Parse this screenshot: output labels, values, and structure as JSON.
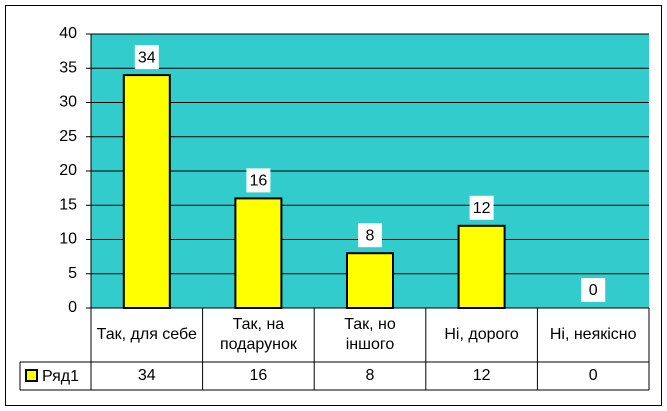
{
  "chart_data": {
    "type": "bar",
    "categories": [
      "Так, для себе",
      "Так, на подарунок",
      "Так, но іншого",
      "Ні, дорого",
      "Ні, неякісно"
    ],
    "series": [
      {
        "name": "Ряд1",
        "color": "#ffff00",
        "values": [
          34,
          16,
          8,
          12,
          0
        ]
      }
    ],
    "ylim": [
      0,
      40
    ],
    "yticks": [
      0,
      5,
      10,
      15,
      20,
      25,
      30,
      35,
      40
    ],
    "grid": true
  }
}
